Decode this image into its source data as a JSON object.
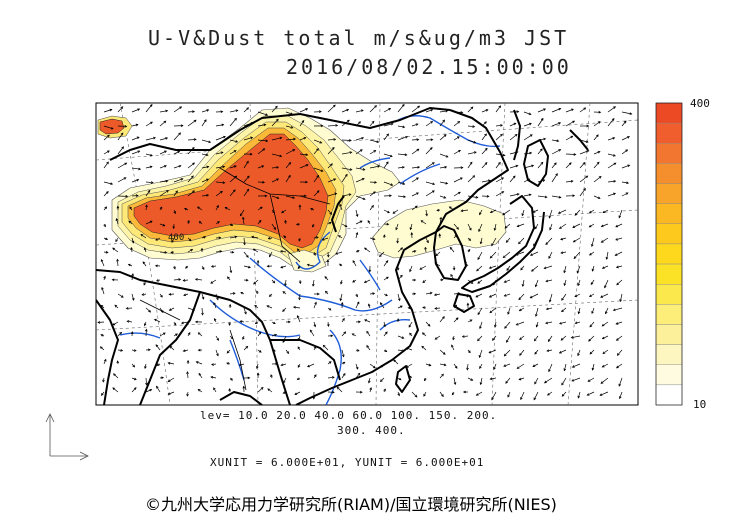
{
  "title": {
    "line1": "U-V&Dust total m/s&ug/m3 JST",
    "line2": "2016/08/02.15:00:00"
  },
  "map": {
    "contour_label": "400",
    "dust_colors": [
      "#fefcd0",
      "#fdf4a8",
      "#fde878",
      "#fdd64a",
      "#fbb93a",
      "#f89a3a",
      "#f27a3a",
      "#ec5a2a"
    ],
    "coast_color": "#000000",
    "river_color": "#1e5cd8",
    "arrow_color": "#000000"
  },
  "levels": {
    "line1": "lev= 10.0 20.0 40.0 60.0 100. 150. 200.",
    "line2": "300. 400."
  },
  "units_text": "XUNIT = 6.000E+01, YUNIT = 6.000E+01",
  "colorbar": {
    "max_label": "400",
    "min_label": "10",
    "colors": [
      "#ffffff",
      "#fefbe0",
      "#fdf6c0",
      "#fcf19a",
      "#fcee78",
      "#fbe84c",
      "#fce227",
      "#fdd81d",
      "#fcc91c",
      "#fbb822",
      "#f8a32a",
      "#f58f2e",
      "#f27530",
      "#ef5e2c",
      "#eb4a25"
    ]
  },
  "copyright": "©九州大学応用力学研究所(RIAM)/国立環境研究所(NIES)"
}
